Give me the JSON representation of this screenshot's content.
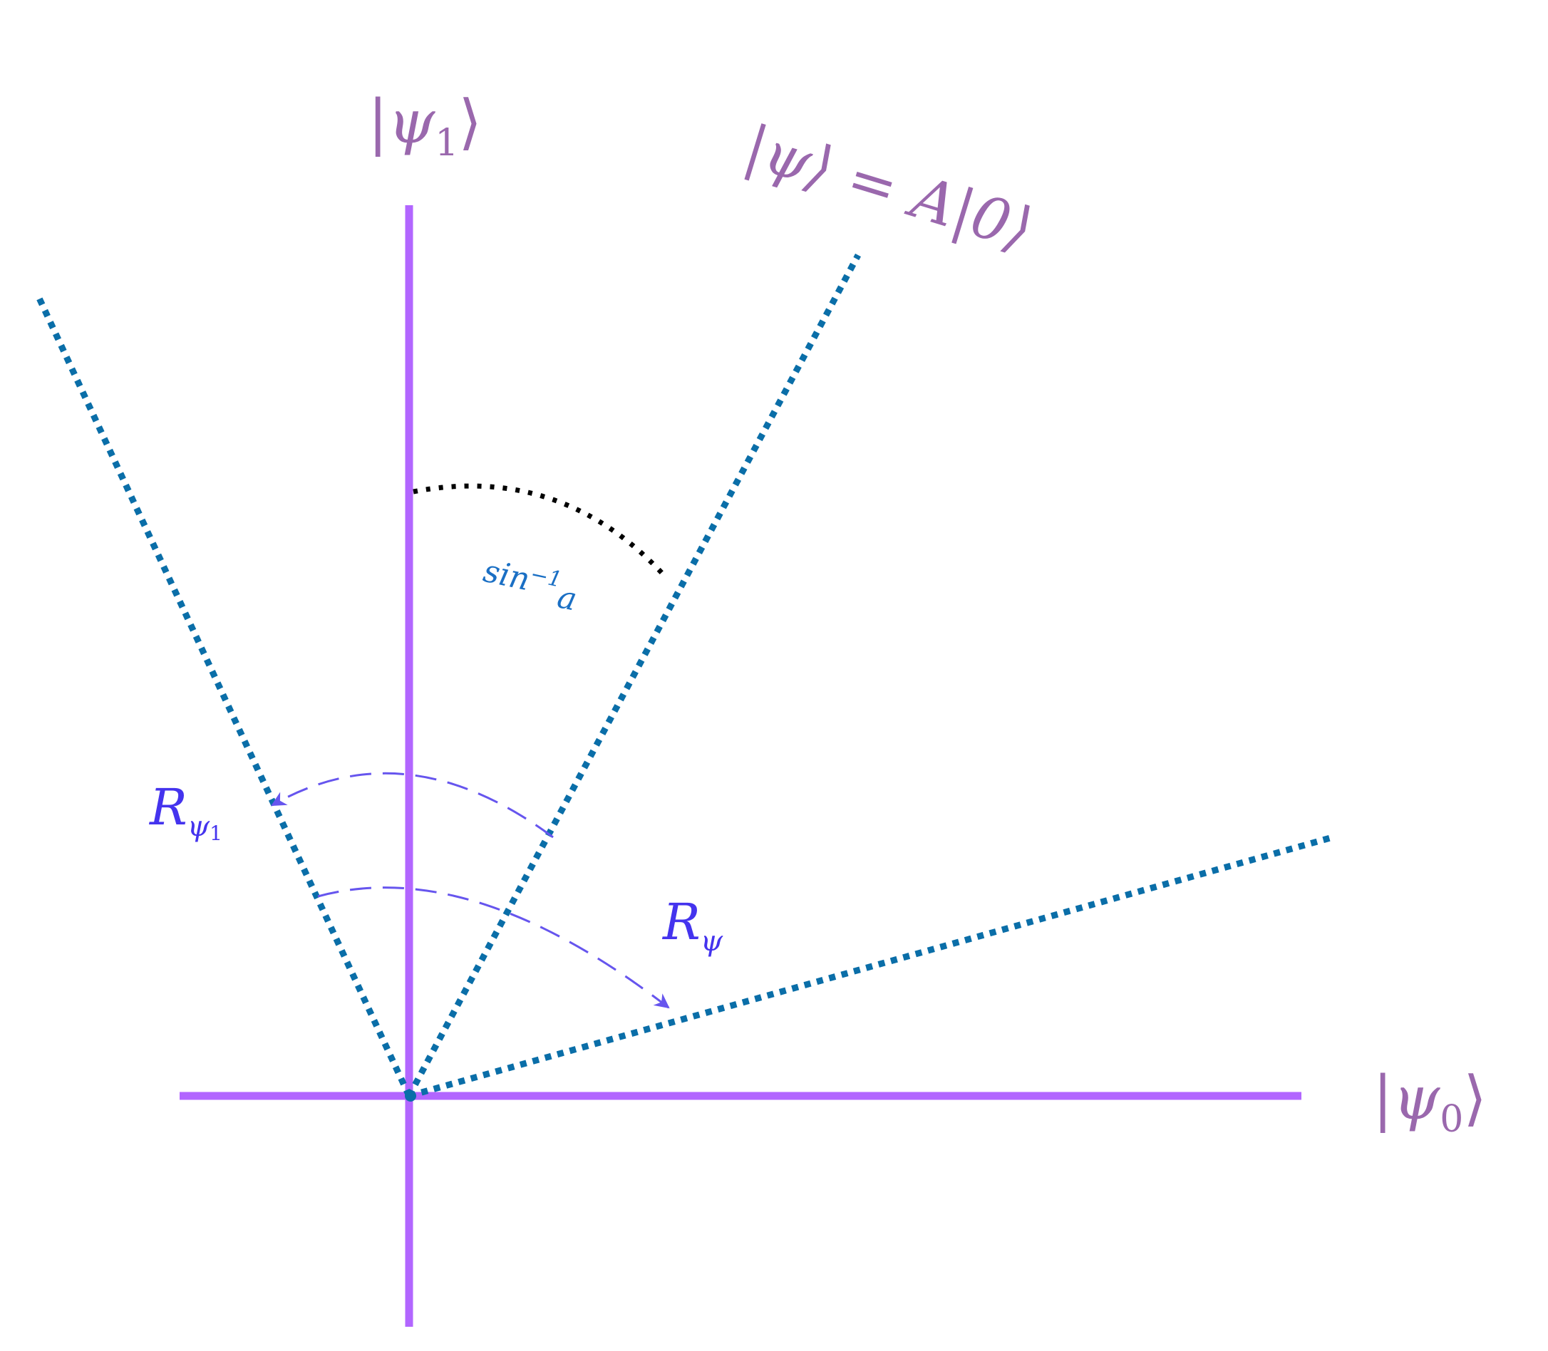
{
  "labels": {
    "psi1_ket": {
      "bar": "|",
      "symbol": "ψ",
      "sub": "1",
      "close": "⟩"
    },
    "psi0_ket": {
      "bar": "|",
      "symbol": "ψ",
      "sub": "0",
      "close": "⟩"
    },
    "psi_state": {
      "text": "|ψ⟩ = A|0⟩"
    },
    "angle": {
      "base": "sin",
      "sup": "−1",
      "arg": "a"
    },
    "reflection_psi1": {
      "symbol": "R",
      "sub": "ψ",
      "subsub": "1"
    },
    "reflection_psi": {
      "symbol": "R",
      "sub": "ψ"
    }
  },
  "colors": {
    "axis": "#b266ff",
    "ray": "#0a6ea8",
    "angle_arc": "#000000",
    "reflection_arrow": "#6655ee",
    "ket_text": "#9a68ad",
    "angle_text": "#1a6fc4",
    "operator_text": "#4433ee"
  }
}
